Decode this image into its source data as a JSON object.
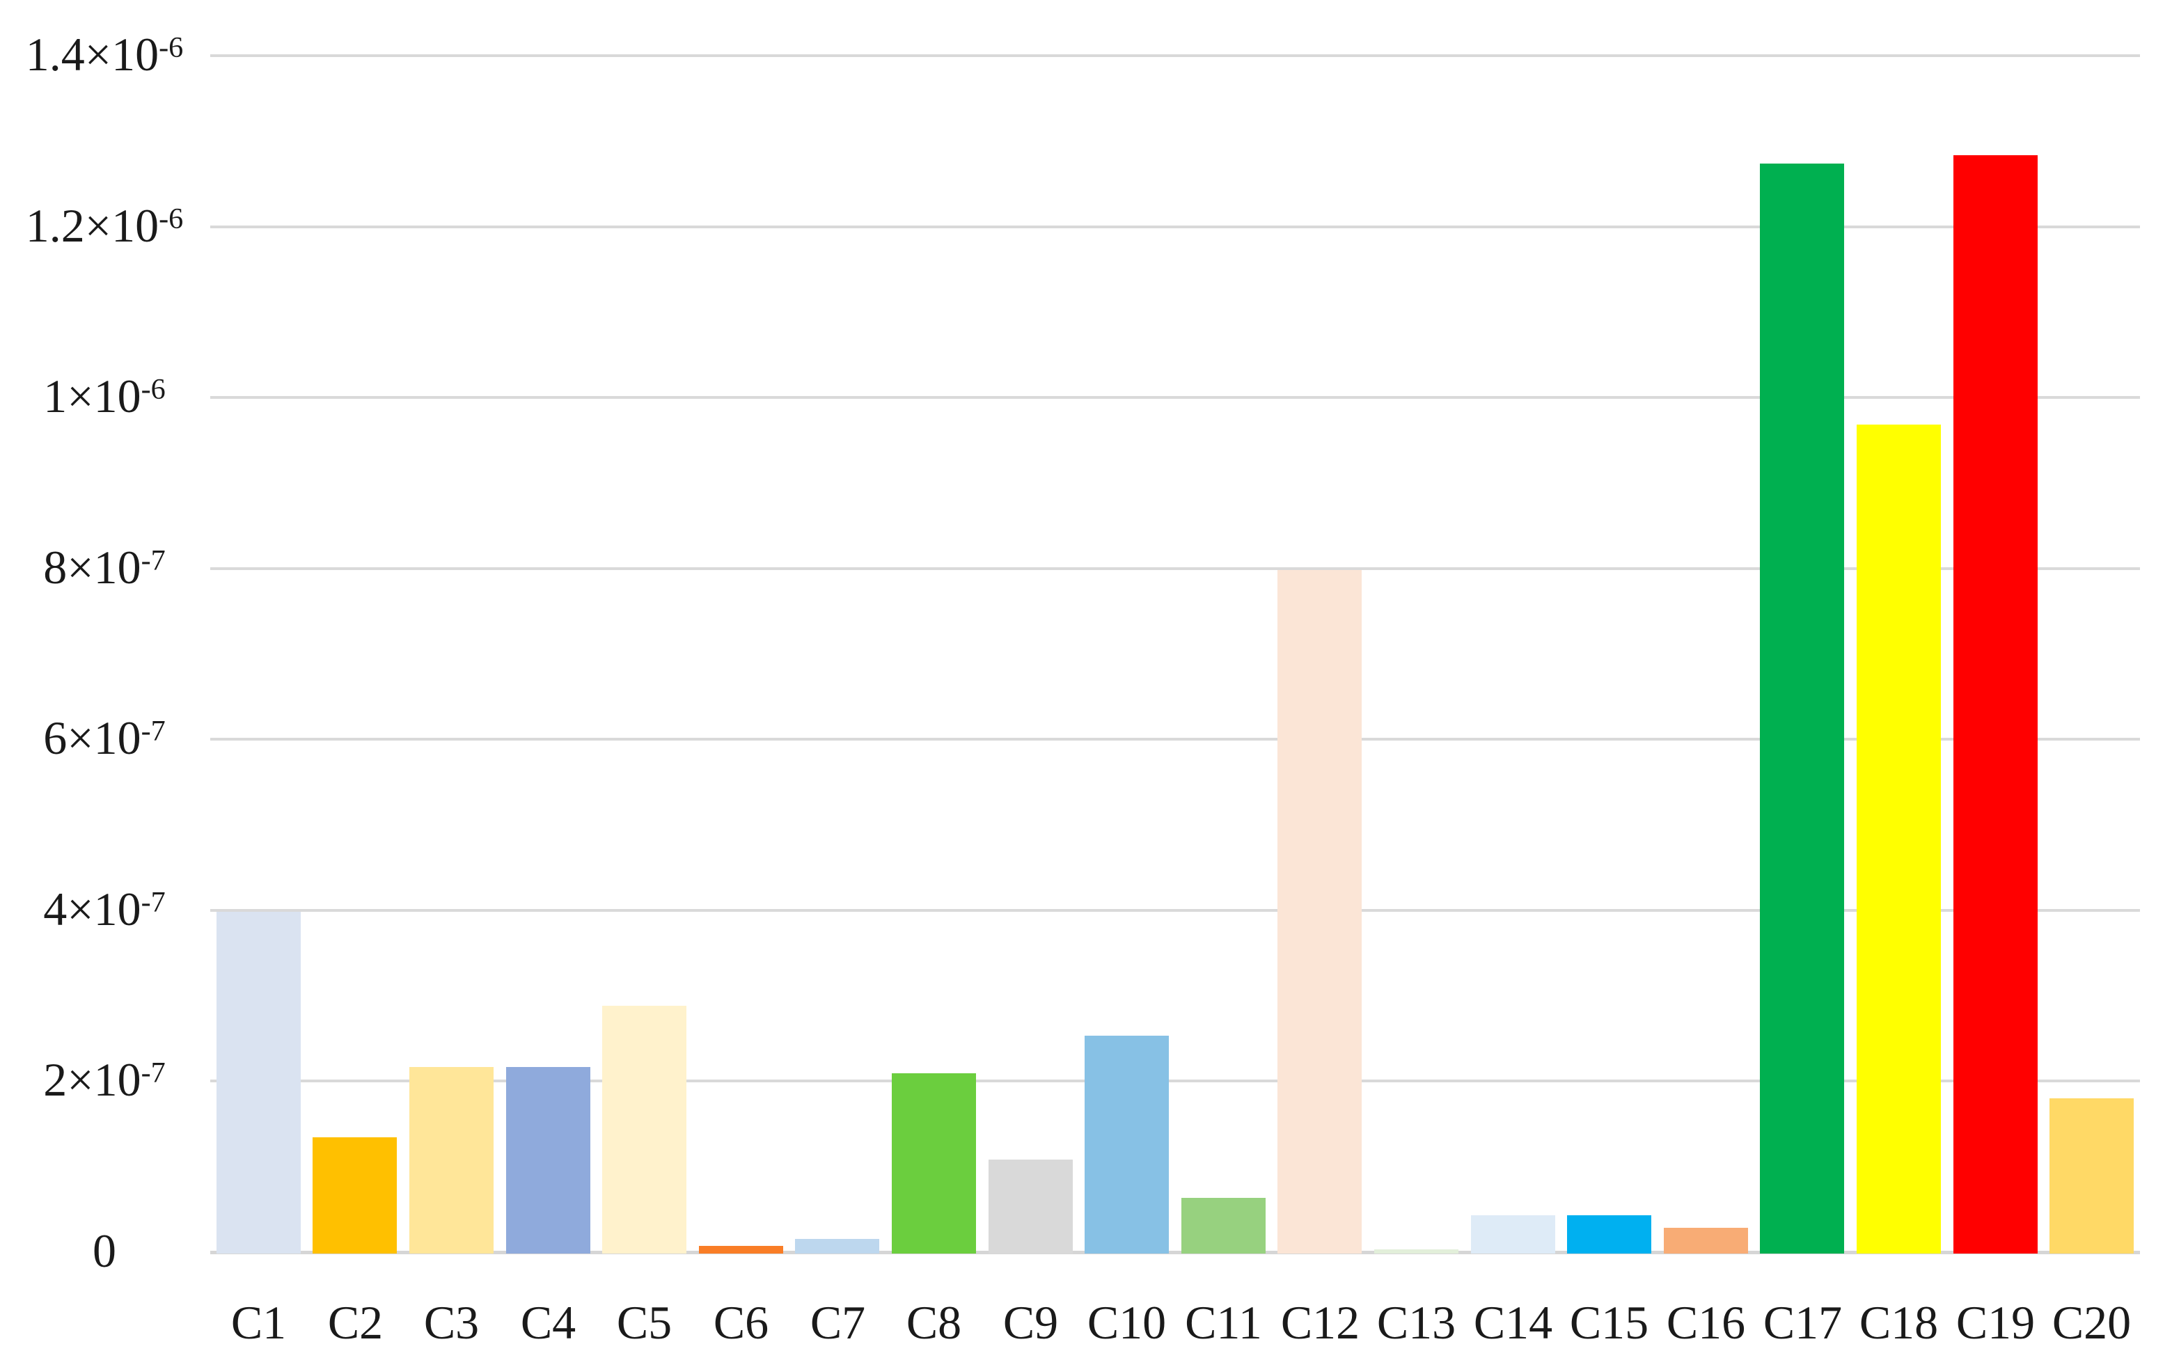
{
  "chart_data": {
    "type": "bar",
    "title": "",
    "xlabel": "",
    "ylabel": "",
    "legend": "none",
    "grid": "horizontal",
    "gridline_color": "#d9d9d9",
    "background_color": "#ffffff",
    "ylim": [
      0,
      1.4e-06
    ],
    "ytick_step": 2e-07,
    "categories": [
      "C1",
      "C2",
      "C3",
      "C4",
      "C5",
      "C6",
      "C7",
      "C8",
      "C9",
      "C10",
      "C11",
      "C12",
      "C13",
      "C14",
      "C15",
      "C16",
      "C17",
      "C18",
      "C19",
      "C20"
    ],
    "values": [
      4e-07,
      1.36e-07,
      2.18e-07,
      2.18e-07,
      2.9e-07,
      9e-09,
      1.7e-08,
      2.11e-07,
      1.1e-07,
      2.55e-07,
      6.5e-08,
      8e-07,
      5e-09,
      4.5e-08,
      4.5e-08,
      3e-08,
      1.275e-06,
      9.7e-07,
      1.285e-06,
      1.82e-07
    ],
    "bar_colors": [
      "#dae3f1",
      "#ffc000",
      "#ffe699",
      "#8faadc",
      "#fff2cc",
      "#f97d26",
      "#bdd7ee",
      "#6bce3e",
      "#d9d9d9",
      "#87c1e5",
      "#97d17f",
      "#fbe5d6",
      "#e2efda",
      "#deebf7",
      "#00b0f0",
      "#f8ac75",
      "#00b050",
      "#ffff00",
      "#ff0000",
      "#ffd966"
    ],
    "ytick_labels": [
      {
        "base": "0",
        "sup": ""
      },
      {
        "base": "2×10",
        "sup": "-7"
      },
      {
        "base": "4×10",
        "sup": "-7"
      },
      {
        "base": "6×10",
        "sup": "-7"
      },
      {
        "base": "8×10",
        "sup": "-7"
      },
      {
        "base": "1×10",
        "sup": "-6"
      },
      {
        "base": "1.2×10",
        "sup": "-6"
      },
      {
        "base": "1.4×10",
        "sup": "-6"
      }
    ]
  }
}
